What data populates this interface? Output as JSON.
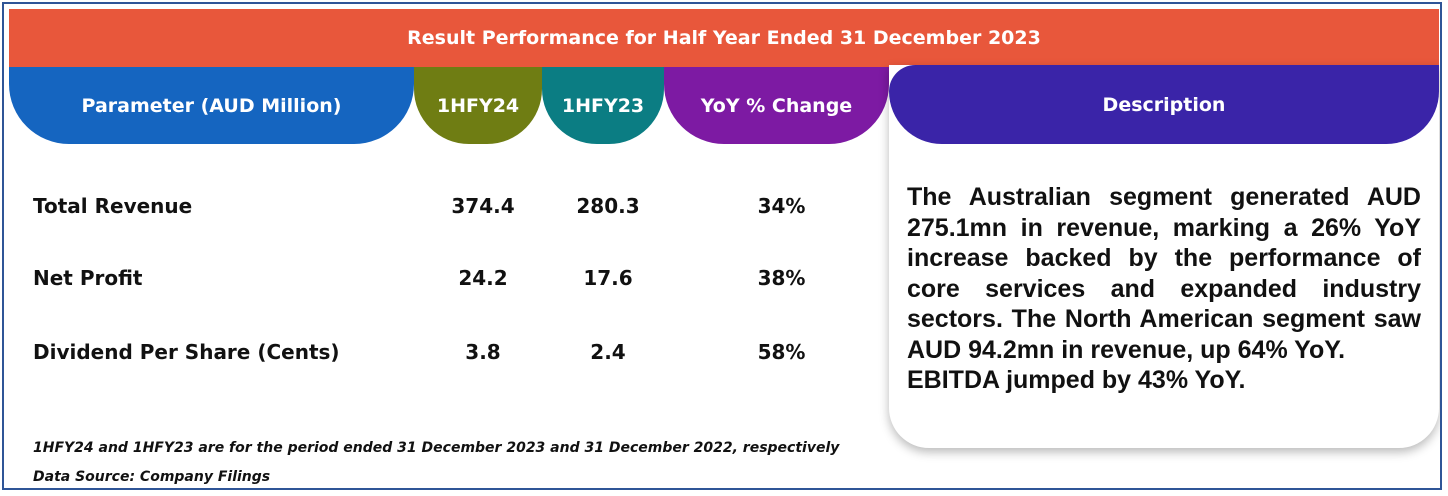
{
  "title": "Result Performance for Half Year Ended 31 December 2023",
  "headers": {
    "parameter": "Parameter (AUD Million)",
    "current": "1HFY24",
    "previous": "1HFY23",
    "yoy": "YoY % Change",
    "description": "Description"
  },
  "rows": [
    {
      "label": "Total Revenue",
      "current": "374.4",
      "previous": "280.3",
      "yoy": "34%"
    },
    {
      "label": "Net Profit",
      "current": "24.2",
      "previous": "17.6",
      "yoy": "38%"
    },
    {
      "label": "Dividend Per Share (Cents)",
      "current": "3.8",
      "previous": "2.4",
      "yoy": "58%"
    }
  ],
  "description": {
    "paragraph": "The Australian segment generated AUD 275.1mn in revenue, marking a 26% YoY increase backed by the performance of core services and expanded industry sectors. The North American segment saw AUD 94.2mn in revenue, up 64% YoY.",
    "ebitda": "EBITDA jumped by 43% YoY."
  },
  "footnotes": {
    "period_note": "1HFY24 and 1HFY23 are for the period ended 31 December 2023 and 31 December 2022, respectively",
    "source": "Data Source: Company Filings"
  },
  "colors": {
    "title_bar": "#e8573b",
    "parameter_header": "#1565c0",
    "current_header": "#6f7d13",
    "previous_header": "#0b7d83",
    "yoy_header": "#7d1aa3",
    "description_header": "#3a24a8",
    "frame_border": "#2f5597"
  }
}
